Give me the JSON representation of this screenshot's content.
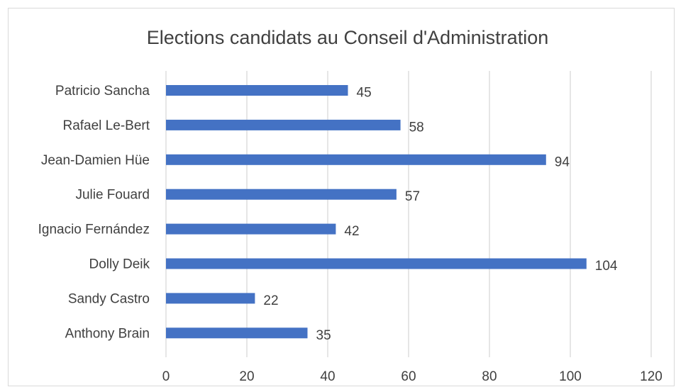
{
  "chart_data": {
    "type": "bar",
    "orientation": "horizontal",
    "title": "Elections candidats au Conseil d'Administration",
    "xlabel": "",
    "ylabel": "",
    "categories": [
      "Patricio Sancha",
      "Rafael Le-Bert",
      "Jean-Damien Hüe",
      "Julie Fouard",
      "Ignacio Fernández",
      "Dolly Deik",
      "Sandy Castro",
      "Anthony Brain"
    ],
    "values": [
      45,
      58,
      94,
      57,
      42,
      104,
      22,
      35
    ],
    "xlim": [
      0,
      120
    ],
    "ticks": [
      "0",
      "20",
      "40",
      "60",
      "80",
      "100",
      "120"
    ],
    "grid": "vertical",
    "legend": "none",
    "bar_color": "#4472c4",
    "gridline_color": "#d9d9d9",
    "text_color": "#404040"
  }
}
